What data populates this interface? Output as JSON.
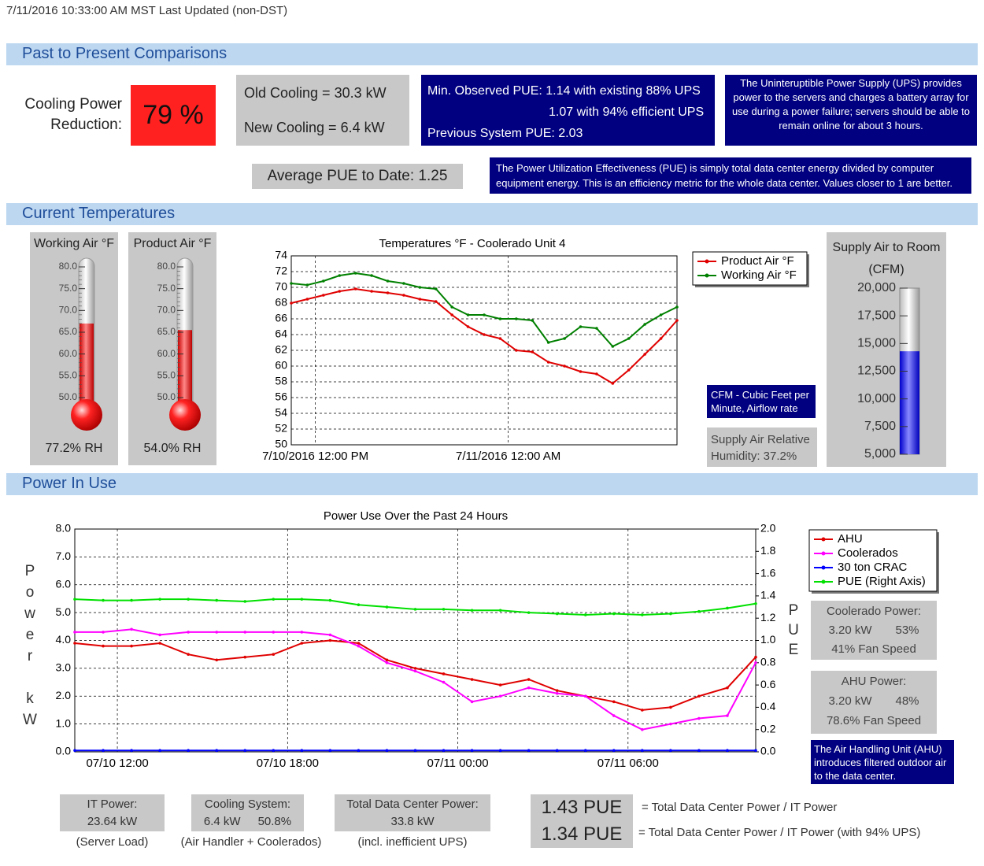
{
  "header": {
    "timestamp": "7/11/2016 10:33:00 AM  MST Last Updated (non-DST)"
  },
  "sections": [
    "Past to Present Comparisons",
    "Current Temperatures",
    "Power In Use"
  ],
  "comparisons": {
    "cooling_label": [
      "Cooling Power",
      "Reduction:"
    ],
    "cooling_reduction": "79 %",
    "old_cooling": "Old Cooling =  30.3 kW",
    "new_cooling": "New Cooling =  6.4 kW",
    "pue_lines": [
      "Min. Observed PUE: 1.14 with existing 88% UPS",
      "1.07 with 94% efficient UPS",
      "Previous System PUE: 2.03"
    ],
    "ups_note": "The Uninteruptible Power Supply (UPS) provides power to the servers and charges a battery array for use during a power failure; servers should be able to remain online for about 3 hours.",
    "average_pue": "Average PUE to Date:  1.25",
    "pue_note": "The Power Utilization Effectiveness (PUE) is simply total data center energy divided by computer equipment energy. This is an efficiency metric for the whole data center. Values closer to 1 are better."
  },
  "temperatures": {
    "gauges": [
      {
        "title": "Working Air °F",
        "value": 67,
        "color": "#e00000",
        "ylim": [
          50,
          80
        ],
        "yticks": [
          {
            "value": 50,
            "label": "50.0"
          },
          {
            "value": 55,
            "label": "55.0"
          },
          {
            "value": 60,
            "label": "60.0"
          },
          {
            "value": 65,
            "label": "65.0"
          },
          {
            "value": 70,
            "label": "70.0"
          },
          {
            "value": 75,
            "label": "75.0"
          },
          {
            "value": 80,
            "label": "80.0"
          }
        ],
        "rh": "77.2% RH"
      },
      {
        "title": "Product Air °F",
        "value": 65.5,
        "color": "#e00000",
        "ylim": [
          50,
          80
        ],
        "yticks": [
          {
            "value": 50,
            "label": "50.0"
          },
          {
            "value": 55,
            "label": "55.0"
          },
          {
            "value": 60,
            "label": "60.0"
          },
          {
            "value": 65,
            "label": "65.0"
          },
          {
            "value": 70,
            "label": "70.0"
          },
          {
            "value": 75,
            "label": "75.0"
          },
          {
            "value": 80,
            "label": "80.0"
          }
        ],
        "rh": "54.0% RH"
      }
    ],
    "cfm_note": "CFM - Cubic Feet per Minute, Airflow rate",
    "humidity": [
      "Supply Air Relative",
      "Humidity:  37.2%"
    ],
    "supply": {
      "title": [
        "Supply Air to Room",
        "(CFM)"
      ],
      "value": 14300,
      "color": "#1010e0",
      "ylim": [
        5000,
        20000
      ],
      "yticks": [
        {
          "value": 5000,
          "label": "5,000"
        },
        {
          "value": 7500,
          "label": "7,500"
        },
        {
          "value": 10000,
          "label": "10,000"
        },
        {
          "value": 12500,
          "label": "12,500"
        },
        {
          "value": 15000,
          "label": "15,000"
        },
        {
          "value": 17500,
          "label": "17,500"
        },
        {
          "value": 20000,
          "label": "20,000"
        }
      ]
    }
  },
  "chart_data": [
    {
      "type": "line",
      "title": "Temperatures °F - Coolerado Unit 4",
      "grid": true,
      "x": [
        "2016-07-10T10:30",
        "2016-07-10T11:30",
        "2016-07-10T12:30",
        "2016-07-10T13:30",
        "2016-07-10T14:30",
        "2016-07-10T15:30",
        "2016-07-10T16:30",
        "2016-07-10T17:30",
        "2016-07-10T18:30",
        "2016-07-10T19:30",
        "2016-07-10T20:30",
        "2016-07-10T21:30",
        "2016-07-10T22:30",
        "2016-07-10T23:30",
        "2016-07-11T00:30",
        "2016-07-11T01:30",
        "2016-07-11T02:30",
        "2016-07-11T03:30",
        "2016-07-11T04:30",
        "2016-07-11T05:30",
        "2016-07-11T06:30",
        "2016-07-11T07:30",
        "2016-07-11T08:30",
        "2016-07-11T09:30",
        "2016-07-11T10:30"
      ],
      "xlim": [
        "2016-07-10T10:30",
        "2016-07-11T10:30"
      ],
      "xticks": [
        {
          "value": "2016-07-10T12:00",
          "label": "7/10/2016 12:00 PM"
        },
        {
          "value": "2016-07-11T00:00",
          "label": "7/11/2016 12:00 AM"
        }
      ],
      "ylim": [
        50,
        74
      ],
      "yticks": [
        50,
        52,
        54,
        56,
        58,
        60,
        62,
        64,
        66,
        68,
        70,
        72,
        74
      ],
      "series": [
        {
          "name": "Product Air °F",
          "color": "#e00000",
          "values": [
            68,
            68.5,
            69,
            69.5,
            69.8,
            69.5,
            69.3,
            69,
            68.5,
            68.2,
            66.5,
            65,
            64,
            63.5,
            62,
            61.8,
            60.5,
            60,
            59.3,
            59,
            57.8,
            59.5,
            61.5,
            63.5,
            65.8
          ]
        },
        {
          "name": "Working Air °F",
          "color": "#008000",
          "values": [
            70.5,
            70.3,
            70.8,
            71.5,
            71.8,
            71.5,
            70.8,
            70.5,
            70,
            69.8,
            67.5,
            66.5,
            66.5,
            66,
            66,
            65.8,
            63,
            63.5,
            65,
            64.8,
            62.5,
            63.5,
            65.3,
            66.5,
            67.5
          ]
        }
      ]
    },
    {
      "type": "line",
      "title": "Power Use Over the Past 24 Hours",
      "grid": true,
      "ylabel": "Power kW",
      "y2label": "PUE",
      "x": [
        "2016-07-10T10:30",
        "2016-07-10T11:30",
        "2016-07-10T12:30",
        "2016-07-10T13:30",
        "2016-07-10T14:30",
        "2016-07-10T15:30",
        "2016-07-10T16:30",
        "2016-07-10T17:30",
        "2016-07-10T18:30",
        "2016-07-10T19:30",
        "2016-07-10T20:30",
        "2016-07-10T21:30",
        "2016-07-10T22:30",
        "2016-07-10T23:30",
        "2016-07-11T00:30",
        "2016-07-11T01:30",
        "2016-07-11T02:30",
        "2016-07-11T03:30",
        "2016-07-11T04:30",
        "2016-07-11T05:30",
        "2016-07-11T06:30",
        "2016-07-11T07:30",
        "2016-07-11T08:30",
        "2016-07-11T09:30",
        "2016-07-11T10:30"
      ],
      "xlim": [
        "2016-07-10T10:30",
        "2016-07-11T10:30"
      ],
      "xticks": [
        {
          "value": "2016-07-10T12:00",
          "label": "07/10 12:00"
        },
        {
          "value": "2016-07-10T18:00",
          "label": "07/10 18:00"
        },
        {
          "value": "2016-07-11T00:00",
          "label": "07/11 00:00"
        },
        {
          "value": "2016-07-11T06:00",
          "label": "07/11 06:00"
        }
      ],
      "ylim": [
        0,
        8
      ],
      "yticks": [
        {
          "value": 0,
          "label": "0.0"
        },
        {
          "value": 1,
          "label": "1.0"
        },
        {
          "value": 2,
          "label": "2.0"
        },
        {
          "value": 3,
          "label": "3.0"
        },
        {
          "value": 4,
          "label": "4.0"
        },
        {
          "value": 5,
          "label": "5.0"
        },
        {
          "value": 6,
          "label": "6.0"
        },
        {
          "value": 7,
          "label": "7.0"
        },
        {
          "value": 8,
          "label": "8.0"
        }
      ],
      "y2lim": [
        0,
        2
      ],
      "y2ticks": [
        {
          "value": 0,
          "label": "0.0"
        },
        {
          "value": 0.2,
          "label": "0.2"
        },
        {
          "value": 0.4,
          "label": "0.4"
        },
        {
          "value": 0.6,
          "label": "0.6"
        },
        {
          "value": 0.8,
          "label": "0.8"
        },
        {
          "value": 1,
          "label": "1.0"
        },
        {
          "value": 1.2,
          "label": "1.2"
        },
        {
          "value": 1.4,
          "label": "1.4"
        },
        {
          "value": 1.6,
          "label": "1.6"
        },
        {
          "value": 1.8,
          "label": "1.8"
        },
        {
          "value": 2,
          "label": "2.0"
        }
      ],
      "series": [
        {
          "name": "AHU",
          "color": "#e00000",
          "values": [
            3.9,
            3.8,
            3.8,
            3.9,
            3.5,
            3.3,
            3.4,
            3.5,
            3.9,
            4.0,
            3.9,
            3.3,
            3.0,
            2.8,
            2.6,
            2.4,
            2.6,
            2.2,
            2.0,
            1.8,
            1.5,
            1.6,
            2.0,
            2.3,
            3.4
          ]
        },
        {
          "name": "Coolerados",
          "color": "#ff00ff",
          "values": [
            4.3,
            4.3,
            4.4,
            4.2,
            4.3,
            4.3,
            4.3,
            4.3,
            4.3,
            4.2,
            3.8,
            3.2,
            2.9,
            2.5,
            1.8,
            2.0,
            2.3,
            2.1,
            2.0,
            1.3,
            0.8,
            1.0,
            1.2,
            1.3,
            3.2
          ]
        },
        {
          "name": "30 ton CRAC",
          "color": "#0000ff",
          "values": [
            0.05,
            0.05,
            0.05,
            0.05,
            0.05,
            0.05,
            0.05,
            0.05,
            0.05,
            0.05,
            0.05,
            0.05,
            0.05,
            0.05,
            0.05,
            0.05,
            0.05,
            0.05,
            0.05,
            0.05,
            0.05,
            0.05,
            0.05,
            0.05,
            0.05
          ]
        },
        {
          "name": "PUE (Right Axis)",
          "color": "#00e000",
          "axis": "y2",
          "values": [
            1.37,
            1.36,
            1.36,
            1.37,
            1.37,
            1.36,
            1.35,
            1.37,
            1.37,
            1.36,
            1.32,
            1.3,
            1.28,
            1.28,
            1.27,
            1.27,
            1.25,
            1.24,
            1.23,
            1.24,
            1.23,
            1.24,
            1.26,
            1.29,
            1.33
          ]
        }
      ]
    }
  ],
  "power": {
    "coolerado": {
      "title": "Coolerado Power:",
      "kw": "3.20 kW",
      "pct": "53%",
      "fan": "41% Fan Speed"
    },
    "ahu": {
      "title": "AHU Power:",
      "kw": "3.20 kW",
      "pct": "48%",
      "fan": "78.6% Fan Speed"
    },
    "ahu_note": "The Air Handling Unit (AHU) introduces filtered outdoor air to the data center.",
    "it": {
      "title": "IT Power:",
      "value": "23.64 kW",
      "caption": "(Server Load)"
    },
    "cooling": {
      "title": "Cooling System:",
      "kw": "6.4 kW",
      "pct": "50.8%",
      "caption": "(Air Handler + Coolerados)"
    },
    "total": {
      "title": "Total Data Center Power:",
      "value": "33.8 kW",
      "caption": "(incl. inefficient UPS)"
    },
    "pue": [
      {
        "value": "1.43 PUE",
        "formula": "= Total Data Center Power / IT Power"
      },
      {
        "value": "1.34 PUE",
        "formula": "= Total Data Center Power / IT Power (with 94% UPS)"
      }
    ]
  }
}
